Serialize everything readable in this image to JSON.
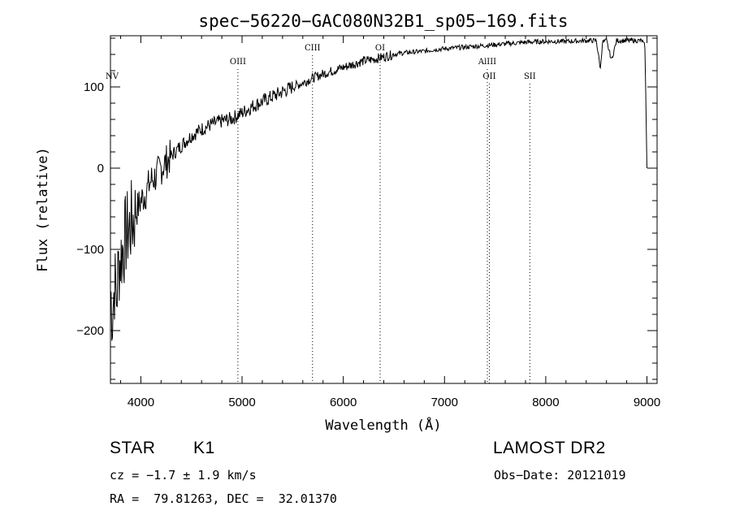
{
  "chart_data": {
    "type": "line",
    "title": "spec−56220−GAC080N32B1_sp05−169.fits",
    "xlabel": "Wavelength (Å)",
    "ylabel": "Flux (relative)",
    "xlim": [
      3700,
      9100
    ],
    "ylim": [
      -265,
      163
    ],
    "x_ticks": [
      4000,
      5000,
      6000,
      7000,
      8000,
      9000
    ],
    "y_ticks": [
      -200,
      -100,
      0,
      100
    ],
    "x_tick_labels": [
      "4000",
      "5000",
      "6000",
      "7000",
      "8000",
      "9000"
    ],
    "y_tick_labels": [
      "−200",
      "−100",
      "0",
      "100"
    ],
    "grid": false,
    "series": [
      {
        "x": [
          3700,
          3720,
          3740,
          3760,
          3780,
          3800,
          3830,
          3860,
          3900,
          3950,
          4000,
          4050,
          4100,
          4150,
          4200,
          4300,
          4400,
          4500,
          4600,
          4700,
          4800,
          4900,
          5000,
          5100,
          5200,
          5300,
          5400,
          5500,
          5600,
          5700,
          5800,
          5900,
          6000,
          6100,
          6200,
          6300,
          6400,
          6500,
          6600,
          6700,
          6800,
          6900,
          7000,
          7200,
          7400,
          7600,
          7800,
          8000,
          8200,
          8400,
          8500,
          8540,
          8560,
          8600,
          8650,
          8700,
          8800,
          8900,
          8950,
          8980,
          9000
        ],
        "y": [
          -150,
          -180,
          -140,
          -160,
          -120,
          -110,
          -95,
          -80,
          -70,
          -55,
          -40,
          -30,
          -15,
          -10,
          0,
          15,
          28,
          40,
          48,
          54,
          58,
          61,
          68,
          76,
          82,
          88,
          94,
          100,
          105,
          111,
          116,
          120,
          124,
          128,
          132,
          134,
          137,
          140,
          142,
          143,
          144,
          146,
          147,
          149,
          151,
          153,
          155,
          156,
          156,
          157,
          157,
          122,
          155,
          157,
          133,
          157,
          157,
          157,
          157,
          150,
          0
        ]
      }
    ],
    "line_labels": [
      {
        "label": "NV",
        "x": 3700,
        "tier": "low"
      },
      {
        "label": "OIII",
        "x": 4959,
        "tier": "mid"
      },
      {
        "label": "CIII",
        "x": 5696,
        "tier": "top"
      },
      {
        "label": "OI",
        "x": 6364,
        "tier": "top"
      },
      {
        "label": "AlIII",
        "x": 7423,
        "tier": "mid"
      },
      {
        "label": "OII",
        "x": 7443,
        "tier": "low"
      },
      {
        "label": "SII",
        "x": 7843,
        "tier": "low"
      }
    ]
  },
  "footer": {
    "object_type": "STAR",
    "subclass": "K1",
    "survey": "LAMOST DR2",
    "cz": "cz = −1.7 ± 1.9 km/s",
    "obs_date": "Obs−Date: 20121019",
    "coords": "RA =  79.81263, DEC =  32.01370"
  }
}
